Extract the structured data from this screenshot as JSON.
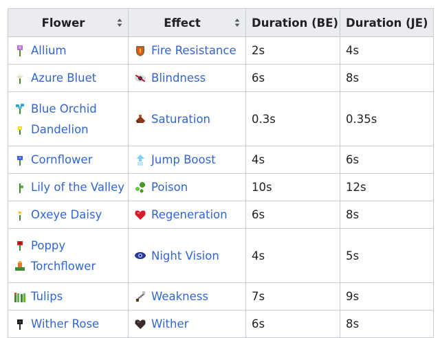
{
  "headers": {
    "flower": "Flower",
    "effect": "Effect",
    "duration_be": "Duration (BE)",
    "duration_je": "Duration (JE)"
  },
  "rows": [
    {
      "flowers": [
        {
          "name": "Allium",
          "icon": "allium-icon"
        }
      ],
      "effect": "Fire Resistance",
      "effect_icon": "fire-resistance-icon",
      "be": "2s",
      "je": "4s"
    },
    {
      "flowers": [
        {
          "name": "Azure Bluet",
          "icon": "azure-bluet-icon"
        }
      ],
      "effect": "Blindness",
      "effect_icon": "blindness-icon",
      "be": "6s",
      "je": "8s"
    },
    {
      "flowers": [
        {
          "name": "Blue Orchid",
          "icon": "blue-orchid-icon"
        },
        {
          "name": "Dandelion",
          "icon": "dandelion-icon"
        }
      ],
      "effect": "Saturation",
      "effect_icon": "saturation-icon",
      "be": "0.3s",
      "je": "0.35s"
    },
    {
      "flowers": [
        {
          "name": "Cornflower",
          "icon": "cornflower-icon"
        }
      ],
      "effect": "Jump Boost",
      "effect_icon": "jump-boost-icon",
      "be": "4s",
      "je": "6s"
    },
    {
      "flowers": [
        {
          "name": "Lily of the Valley",
          "icon": "lily-of-the-valley-icon"
        }
      ],
      "effect": "Poison",
      "effect_icon": "poison-icon",
      "be": "10s",
      "je": "12s"
    },
    {
      "flowers": [
        {
          "name": "Oxeye Daisy",
          "icon": "oxeye-daisy-icon"
        }
      ],
      "effect": "Regeneration",
      "effect_icon": "regeneration-icon",
      "be": "6s",
      "je": "8s"
    },
    {
      "flowers": [
        {
          "name": "Poppy",
          "icon": "poppy-icon"
        },
        {
          "name": "Torchflower",
          "icon": "torchflower-icon"
        }
      ],
      "effect": "Night Vision",
      "effect_icon": "night-vision-icon",
      "be": "4s",
      "je": "5s"
    },
    {
      "flowers": [
        {
          "name": "Tulips",
          "icon": "tulips-icon"
        }
      ],
      "effect": "Weakness",
      "effect_icon": "weakness-icon",
      "be": "7s",
      "je": "9s"
    },
    {
      "flowers": [
        {
          "name": "Wither Rose",
          "icon": "wither-rose-icon"
        }
      ],
      "effect": "Wither",
      "effect_icon": "wither-icon",
      "be": "6s",
      "je": "8s"
    }
  ],
  "colors": {
    "link": "#3366cc",
    "header_bg": "#eaecf0",
    "border": "#c8ccd1",
    "text": "#202122"
  }
}
